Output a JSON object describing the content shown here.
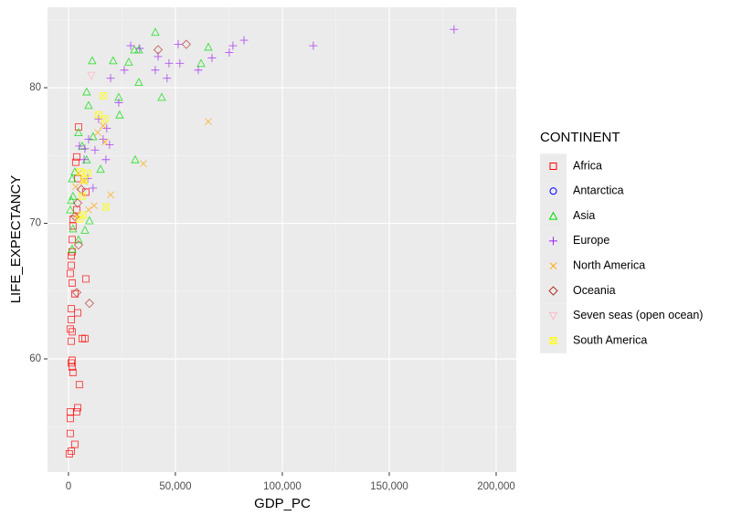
{
  "chart_data": {
    "type": "scatter",
    "x_label": "GDP_PC",
    "y_label": "LIFE_EXPECTANCY",
    "legend_title": "CONTINENT",
    "xlim": [
      -9800,
      209400
    ],
    "ylim": [
      51.65,
      85.93
    ],
    "xticks": [
      0,
      {
        "value": 50000,
        "label": "50,000"
      },
      {
        "value": 100000,
        "label": "100,000"
      },
      {
        "value": 150000,
        "label": "150,000"
      },
      {
        "value": 200000,
        "label": "200,000"
      }
    ],
    "yticks": [
      60,
      70,
      80
    ],
    "x_minor_grid": [
      25000,
      75000,
      125000,
      175000
    ],
    "y_minor_grid": [
      55,
      65,
      75,
      85
    ],
    "grid": true,
    "legend": "right",
    "series": [
      {
        "name": "Africa",
        "color": "#ff0000",
        "shape": "square",
        "x": [
          4700,
          3850,
          3400,
          4300,
          8100,
          3850,
          2100,
          2100,
          1700,
          1700,
          1300,
          1300,
          850,
          1700,
          3000,
          1300,
          4300,
          1300,
          850,
          1700,
          1300,
          1700,
          1300,
          1700,
          2100,
          4300,
          3850,
          850,
          850,
          3000,
          850,
          1300,
          400,
          5100,
          7700,
          8100,
          6400
        ],
        "values": [
          77.1,
          74.9,
          74.5,
          73.3,
          72.3,
          71.0,
          70.3,
          69.8,
          68.8,
          67.9,
          67.6,
          66.9,
          66.3,
          65.6,
          64.8,
          63.7,
          63.4,
          62.9,
          62.2,
          62.0,
          61.3,
          59.9,
          59.7,
          59.4,
          59.0,
          56.4,
          56.1,
          56.1,
          55.6,
          53.7,
          54.5,
          53.2,
          53.0,
          58.1,
          61.5,
          65.9,
          61.5
        ]
      },
      {
        "name": "Antarctica",
        "color": "#0000ff",
        "shape": "circle",
        "x": [],
        "values": []
      },
      {
        "name": "Asia",
        "color": "#00dd00",
        "shape": "triangle",
        "x": [
          40600,
          11100,
          20900,
          28200,
          30800,
          32900,
          43600,
          23500,
          23900,
          8500,
          9400,
          11500,
          4700,
          6400,
          8500,
          31200,
          15000,
          3000,
          1700,
          2100,
          1300,
          850,
          2100,
          1700,
          4700,
          7700,
          65400,
          62000,
          32900,
          9800
        ],
        "values": [
          84.1,
          82.0,
          82.0,
          81.9,
          82.8,
          80.4,
          79.3,
          79.3,
          78.0,
          79.7,
          78.7,
          76.4,
          76.7,
          75.7,
          74.7,
          74.7,
          74.0,
          73.8,
          73.3,
          72.0,
          71.7,
          71.0,
          69.6,
          68.1,
          68.8,
          69.5,
          83.0,
          81.8,
          82.8,
          70.2
        ]
      },
      {
        "name": "Europe",
        "color": "#a020f0",
        "shape": "plus",
        "x": [
          180300,
          114500,
          82100,
          76900,
          75200,
          67100,
          60700,
          52100,
          51300,
          47000,
          46100,
          40600,
          41900,
          33300,
          29100,
          26100,
          23500,
          19700,
          17900,
          19200,
          16200,
          12400,
          9400,
          7300,
          5100,
          7700,
          11500,
          9000,
          14100,
          17500
        ],
        "values": [
          84.3,
          83.1,
          83.5,
          83.1,
          82.6,
          82.2,
          81.3,
          81.8,
          83.2,
          81.8,
          80.7,
          81.3,
          82.3,
          82.9,
          83.1,
          81.3,
          78.9,
          80.7,
          77.0,
          75.8,
          76.2,
          75.4,
          76.2,
          74.7,
          75.7,
          75.5,
          72.6,
          73.3,
          77.7,
          74.7
        ]
      },
      {
        "name": "North America",
        "color": "#ffa500",
        "shape": "cross",
        "x": [
          65400,
          35000,
          19700,
          12000,
          13700,
          7300,
          4700,
          3400,
          9400,
          17100,
          3850,
          16200
        ],
        "values": [
          77.5,
          74.4,
          72.1,
          71.3,
          76.7,
          73.1,
          73.7,
          72.7,
          71.0,
          76.0,
          70.6,
          77.2
        ]
      },
      {
        "name": "Oceania",
        "color": "#b5342c",
        "shape": "diamond",
        "x": [
          41900,
          55100,
          9800,
          4700,
          3000,
          4300,
          6000,
          3850
        ],
        "values": [
          82.8,
          83.2,
          64.1,
          68.4,
          70.5,
          71.5,
          72.5,
          64.9
        ]
      },
      {
        "name": "Seven seas (open ocean)",
        "color": "#ffb6c1",
        "shape": "triangle-down",
        "x": [
          10700
        ],
        "values": [
          80.9
        ]
      },
      {
        "name": "South America",
        "color": "#ffff00",
        "shape": "square-cross",
        "x": [
          16200,
          14100,
          17500,
          9000,
          7300,
          5600,
          6400,
          6800,
          5100,
          17100
        ],
        "values": [
          79.4,
          78.0,
          71.2,
          73.7,
          73.2,
          73.8,
          72.0,
          70.6,
          70.3,
          77.7
        ]
      }
    ]
  }
}
